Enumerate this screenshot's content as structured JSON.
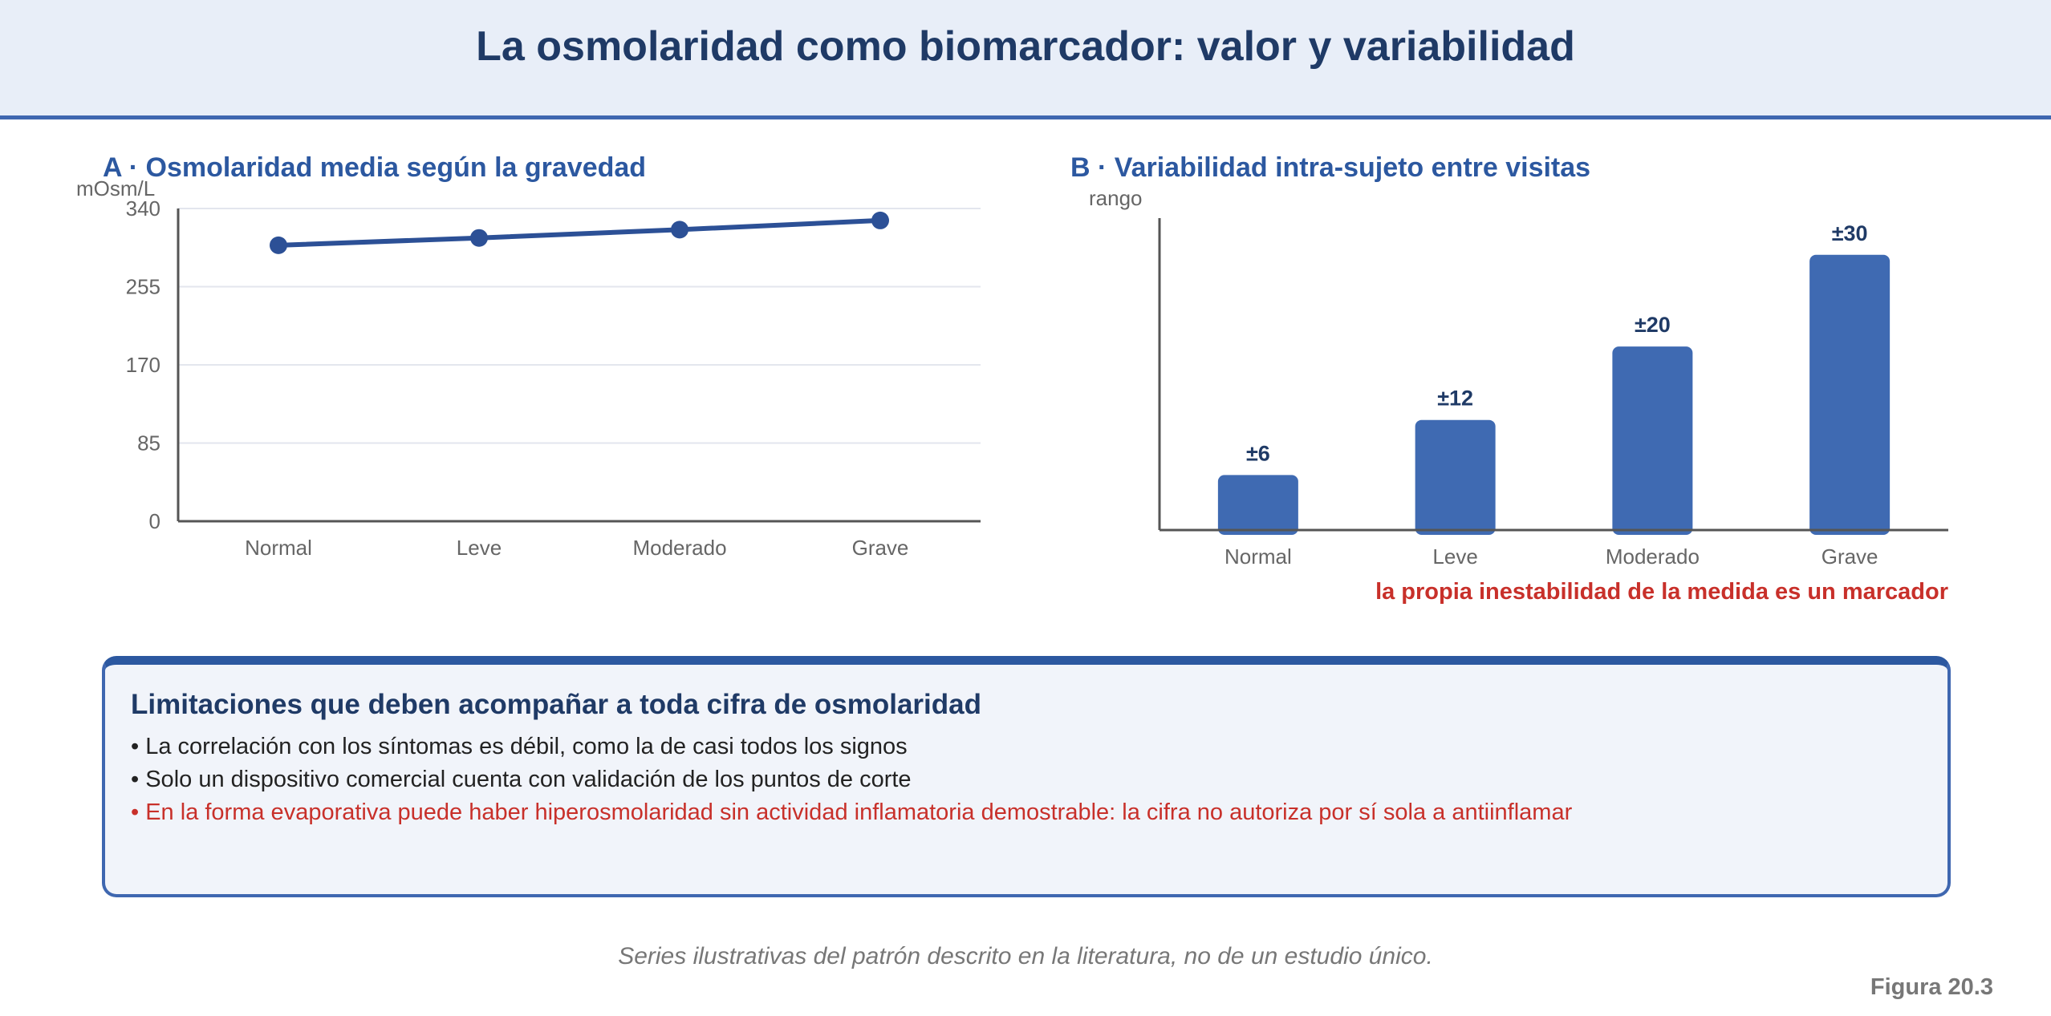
{
  "title": "La osmolaridad como biomarcador: valor y variabilidad",
  "chart_data": [
    {
      "type": "line",
      "title": "A · Osmolaridad media según la gravedad",
      "ylabel": "mOsm/L",
      "xlabel": "",
      "categories": [
        "Normal",
        "Leve",
        "Moderado",
        "Grave"
      ],
      "values": [
        300,
        308,
        317,
        327
      ],
      "ylim": [
        0,
        340
      ],
      "yticks": [
        "0",
        "85",
        "170",
        "255",
        "340"
      ],
      "grid": true,
      "color": "#2c5096"
    },
    {
      "type": "bar",
      "title": "B · Variabilidad intra-sujeto entre visitas",
      "ylabel": "rango",
      "xlabel": "",
      "categories": [
        "Normal",
        "Leve",
        "Moderado",
        "Grave"
      ],
      "values": [
        6,
        12,
        20,
        30
      ],
      "value_labels": [
        "±6",
        "±12",
        "±20",
        "±30"
      ],
      "ylim": [
        0,
        34
      ],
      "grid": false,
      "color": "#3f6ab2",
      "annotation": "la propia inestabilidad de la medida es un marcador"
    }
  ],
  "limitations": {
    "title": "Limitaciones que deben acompañar a toda cifra de osmolaridad",
    "items": [
      "La correlación con los síntomas es débil, como la de casi todos los signos",
      "Solo un dispositivo comercial cuenta con validación de los puntos de corte",
      "En la forma evaporativa puede haber hiperosmolaridad sin actividad inflamatoria demostrable: la cifra no autoriza por sí sola a antiinflamar"
    ]
  },
  "footnote": "Series ilustrativas del patrón descrito en la literatura, no de un estudio único.",
  "figure_label": "Figura 20.3",
  "colors": {
    "accent": "#3f67b0",
    "title": "#1f3a66",
    "alert": "#c8302a"
  }
}
